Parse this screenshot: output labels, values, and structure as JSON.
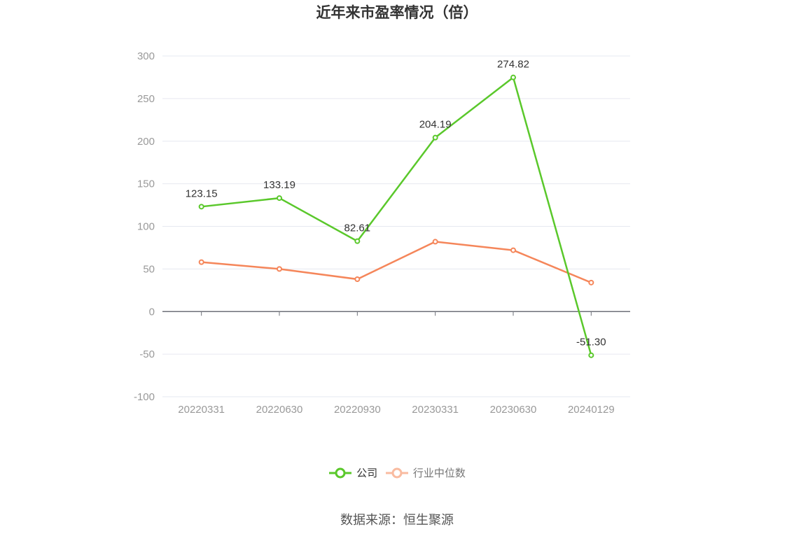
{
  "chart_data": {
    "type": "line",
    "title": "近年来市盈率情况（倍）",
    "categories": [
      "20220331",
      "20220630",
      "20220930",
      "20230331",
      "20230630",
      "20240129"
    ],
    "series": [
      {
        "name": "公司",
        "values": [
          123.15,
          133.19,
          82.61,
          204.19,
          274.82,
          -51.3
        ],
        "labels": [
          "123.15",
          "133.19",
          "82.61",
          "204.19",
          "274.82",
          "-51.30"
        ],
        "color": "#5ac82b"
      },
      {
        "name": "行业中位数",
        "values": [
          58,
          50,
          38,
          82,
          72,
          34
        ],
        "color": "#f5865a"
      }
    ],
    "yticks": [
      "300",
      "250",
      "200",
      "150",
      "100",
      "50",
      "0",
      "-50",
      "-100"
    ],
    "ylim": [
      -100,
      300
    ],
    "grid": true,
    "legend": "bottom-center"
  },
  "legend_hidden_color": "#f9bba0",
  "source": "数据来源：恒生聚源"
}
